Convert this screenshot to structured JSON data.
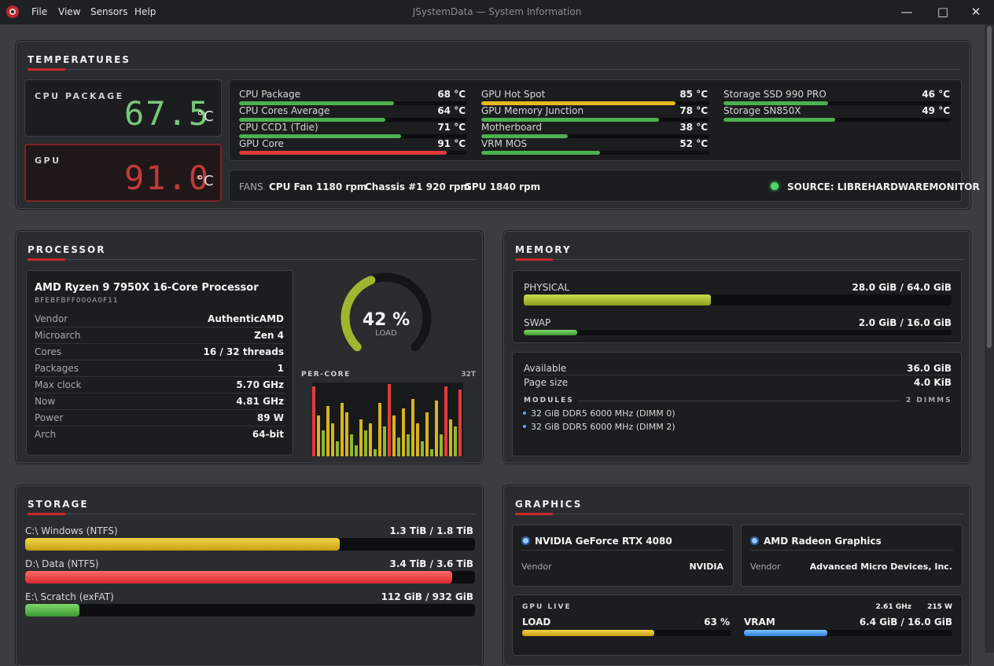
{
  "window": {
    "title": "JSystemData — System Information",
    "menu": [
      "File",
      "View",
      "Sensors",
      "Help"
    ],
    "controls": [
      "minimize",
      "maximize",
      "close"
    ]
  },
  "temperatures": {
    "title": "TEMPERATURES",
    "cpu_package": {
      "label": "CPU PACKAGE",
      "value": "67.5",
      "unit": "°C"
    },
    "gpu": {
      "label": "GPU",
      "value": "91.0",
      "unit": "°C"
    },
    "sensors": [
      {
        "label": "CPU Package",
        "value": "68 °C",
        "pct": 0.68,
        "color": "#4caf50"
      },
      {
        "label": "CPU Cores Average",
        "value": "64 °C",
        "pct": 0.64,
        "color": "#4caf50"
      },
      {
        "label": "CPU CCD1 (Tdie)",
        "value": "71 °C",
        "pct": 0.71,
        "color": "#4caf50"
      },
      {
        "label": "GPU Core",
        "value": "91 °C",
        "pct": 0.91,
        "color": "#e03b3b"
      },
      {
        "label": "GPU Hot Spot",
        "value": "85 °C",
        "pct": 0.85,
        "color": "#e6b91e"
      },
      {
        "label": "GPU Memory Junction",
        "value": "78 °C",
        "pct": 0.78,
        "color": "#4caf50"
      },
      {
        "label": "Motherboard",
        "value": "38 °C",
        "pct": 0.38,
        "color": "#4caf50"
      },
      {
        "label": "VRM MOS",
        "value": "52 °C",
        "pct": 0.52,
        "color": "#4caf50"
      },
      {
        "label": "Storage SSD 990 PRO",
        "value": "46 °C",
        "pct": 0.46,
        "color": "#4caf50"
      },
      {
        "label": "Storage SN850X",
        "value": "49 °C",
        "pct": 0.49,
        "color": "#4caf50"
      }
    ],
    "fans_label": "FANS",
    "fans": [
      "CPU Fan 1180 rpm",
      "Chassis #1 920 rpm",
      "GPU 1840 rpm"
    ],
    "source": "SOURCE: LIBREHARDWAREMONITOR"
  },
  "processor": {
    "title": "PROCESSOR",
    "name": "AMD Ryzen 9 7950X 16-Core Processor",
    "id": "BFEBFBFF000A0F11",
    "specs": [
      {
        "label": "Vendor",
        "value": "AuthenticAMD"
      },
      {
        "label": "Microarch",
        "value": "Zen 4"
      },
      {
        "label": "Cores",
        "value": "16 / 32 threads"
      },
      {
        "label": "Packages",
        "value": "1"
      },
      {
        "label": "Max clock",
        "value": "5.70 GHz"
      },
      {
        "label": "Now",
        "value": "4.81 GHz"
      },
      {
        "label": "Power",
        "value": "89 W"
      },
      {
        "label": "Arch",
        "value": "64-bit"
      }
    ],
    "load": {
      "value": "42 %",
      "pct": 0.42,
      "label": "LOAD"
    },
    "per_core_label": "PER-CORE",
    "thread_count": "32T",
    "per_core": [
      0.95,
      0.55,
      0.35,
      0.68,
      0.45,
      0.2,
      0.72,
      0.6,
      0.3,
      0.15,
      0.5,
      0.35,
      0.45,
      0.1,
      0.72,
      0.4,
      0.98,
      0.55,
      0.25,
      0.65,
      0.3,
      0.78,
      0.45,
      0.2,
      0.6,
      0.1,
      0.75,
      0.3,
      0.95,
      0.5,
      0.4,
      0.9
    ]
  },
  "memory": {
    "title": "MEMORY",
    "physical": {
      "label": "PHYSICAL",
      "value": "28.0 GiB / 64.0 GiB",
      "pct": 0.4375
    },
    "swap": {
      "label": "SWAP",
      "value": "2.0 GiB / 16.0 GiB",
      "pct": 0.125
    },
    "available": {
      "label": "Available",
      "value": "36.0 GiB"
    },
    "page_size": {
      "label": "Page size",
      "value": "4.0 KiB"
    },
    "modules_label": "MODULES",
    "modules_count": "2 DIMMS",
    "modules": [
      "32 GiB DDR5 6000 MHz (DIMM 0)",
      "32 GiB DDR5 6000 MHz (DIMM 2)"
    ]
  },
  "storage": {
    "title": "STORAGE",
    "drives": [
      {
        "name": "C:\\  Windows (NTFS)",
        "value": "1.3 TiB / 1.8 TiB",
        "pct": 0.7,
        "color": "yellow"
      },
      {
        "name": "D:\\  Data (NTFS)",
        "value": "3.4 TiB / 3.6 TiB",
        "pct": 0.95,
        "color": "red"
      },
      {
        "name": "E:\\  Scratch (exFAT)",
        "value": "112 GiB / 932 GiB",
        "pct": 0.12,
        "color": "green"
      }
    ]
  },
  "graphics": {
    "title": "GRAPHICS",
    "gpus": [
      {
        "name": "NVIDIA GeForce RTX 4080",
        "vendor_label": "Vendor",
        "vendor": "NVIDIA"
      },
      {
        "name": "AMD Radeon Graphics",
        "vendor_label": "Vendor",
        "vendor": "Advanced Micro Devices, Inc."
      }
    ],
    "live_label": "GPU LIVE",
    "clock": "2.61 GHz",
    "power": "215 W",
    "load": {
      "label": "LOAD",
      "value": "63 %",
      "pct": 0.63
    },
    "vram": {
      "label": "VRAM",
      "value": "6.4 GiB / 16.0 GiB",
      "pct": 0.4
    }
  }
}
